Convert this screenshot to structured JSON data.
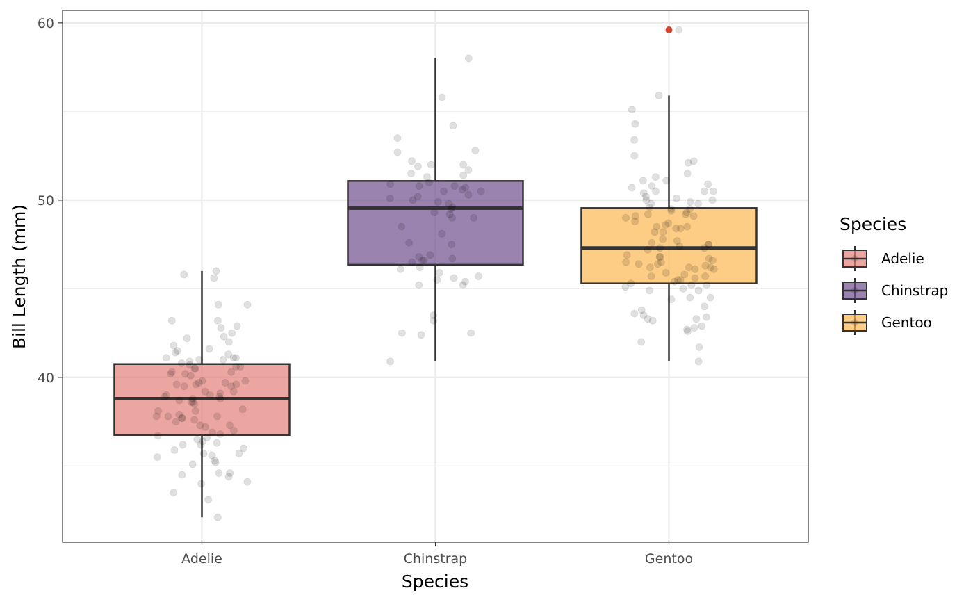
{
  "chart_data": {
    "type": "boxplot",
    "xlabel": "Species",
    "ylabel": "Bill Length (mm)",
    "ylim": [
      30.7,
      60.7
    ],
    "y_ticks": [
      40,
      50,
      60
    ],
    "y_minor_ticks": [
      35,
      45,
      55
    ],
    "categories": [
      "Adelie",
      "Chinstrap",
      "Gentoo"
    ],
    "grid": true,
    "legend": {
      "title": "Species",
      "placement": "right",
      "items": [
        {
          "label": "Adelie",
          "color": "#e4807a"
        },
        {
          "label": "Chinstrap",
          "color": "#6f4f8d"
        },
        {
          "label": "Gentoo",
          "color": "#fcb651"
        }
      ]
    },
    "boxes": [
      {
        "category": "Adelie",
        "whisker_low": 32.1,
        "q1": 36.75,
        "median": 38.8,
        "q3": 40.75,
        "whisker_high": 46.0,
        "outliers": [],
        "color": "#e4807a"
      },
      {
        "category": "Chinstrap",
        "whisker_low": 40.9,
        "q1": 46.35,
        "median": 49.55,
        "q3": 51.08,
        "whisker_high": 58.0,
        "outliers": [],
        "color": "#6f4f8d"
      },
      {
        "category": "Gentoo",
        "whisker_low": 40.9,
        "q1": 45.3,
        "median": 47.3,
        "q3": 49.55,
        "whisker_high": 55.9,
        "outliers": [
          59.6
        ],
        "color": "#fcb651"
      }
    ],
    "outlier_color": "#d1432b",
    "jitter_points": [
      {
        "category": "Adelie",
        "values": [
          46.0,
          45.8,
          45.6,
          44.1,
          44.1,
          43.2,
          43.2,
          42.9,
          42.8,
          42.5,
          42.3,
          42.2,
          42.0,
          41.8,
          41.6,
          41.5,
          41.4,
          41.3,
          41.1,
          41.1,
          41.1,
          41.0,
          41.0,
          40.9,
          40.8,
          40.7,
          40.6,
          40.6,
          40.5,
          40.5,
          40.3,
          40.3,
          40.2,
          40.2,
          40.1,
          39.8,
          39.8,
          39.7,
          39.7,
          39.6,
          39.6,
          39.6,
          39.5,
          39.5,
          39.2,
          39.2,
          39.1,
          39.0,
          39.0,
          38.9,
          38.9,
          38.8,
          38.8,
          38.7,
          38.6,
          38.6,
          38.5,
          38.2,
          38.1,
          38.1,
          37.9,
          37.8,
          37.8,
          37.8,
          37.7,
          37.7,
          37.6,
          37.5,
          37.3,
          37.3,
          37.2,
          37.0,
          36.9,
          36.8,
          36.7,
          36.6,
          36.5,
          36.4,
          36.3,
          36.2,
          36.2,
          36.0,
          35.9,
          35.7,
          35.7,
          35.6,
          35.5,
          35.3,
          35.2,
          35.1,
          34.6,
          34.6,
          34.5,
          34.4,
          34.1,
          34.0,
          33.5,
          33.1,
          32.1
        ]
      },
      {
        "category": "Chinstrap",
        "values": [
          58.0,
          55.8,
          54.2,
          53.5,
          52.8,
          52.7,
          52.2,
          52.0,
          52.0,
          51.9,
          51.7,
          51.5,
          51.4,
          51.3,
          51.0,
          50.9,
          50.8,
          50.8,
          50.7,
          50.6,
          50.5,
          50.5,
          50.3,
          50.2,
          50.1,
          50.0,
          49.9,
          49.8,
          49.6,
          49.5,
          49.3,
          49.2,
          49.0,
          49.0,
          48.5,
          48.1,
          47.6,
          47.5,
          46.9,
          46.8,
          46.7,
          46.6,
          46.6,
          46.5,
          46.2,
          46.1,
          45.9,
          45.7,
          45.6,
          45.5,
          45.4,
          45.2,
          45.2,
          43.5,
          43.2,
          42.5,
          42.5,
          42.4,
          40.9
        ]
      },
      {
        "category": "Gentoo",
        "values": [
          59.6,
          55.9,
          55.1,
          54.3,
          53.4,
          52.5,
          52.2,
          52.1,
          51.5,
          51.3,
          51.1,
          51.1,
          50.9,
          50.8,
          50.7,
          50.5,
          50.5,
          50.5,
          50.4,
          50.2,
          50.1,
          50.0,
          50.0,
          49.9,
          49.8,
          49.8,
          49.6,
          49.5,
          49.5,
          49.4,
          49.3,
          49.2,
          49.2,
          49.1,
          49.1,
          49.0,
          48.8,
          48.7,
          48.6,
          48.5,
          48.5,
          48.4,
          48.4,
          48.2,
          48.2,
          47.8,
          47.7,
          47.6,
          47.5,
          47.5,
          47.4,
          47.3,
          47.3,
          47.2,
          46.9,
          46.8,
          46.8,
          46.7,
          46.6,
          46.5,
          46.5,
          46.4,
          46.4,
          46.3,
          46.2,
          46.2,
          46.2,
          46.1,
          46.1,
          45.9,
          45.8,
          45.7,
          45.7,
          45.6,
          45.5,
          45.5,
          45.4,
          45.3,
          45.2,
          45.2,
          45.1,
          45.0,
          44.9,
          44.9,
          44.5,
          44.5,
          44.4,
          44.0,
          43.8,
          43.6,
          43.5,
          43.4,
          43.3,
          43.3,
          43.2,
          42.9,
          42.8,
          42.7,
          42.6,
          42.0,
          41.7,
          40.9
        ]
      }
    ]
  }
}
